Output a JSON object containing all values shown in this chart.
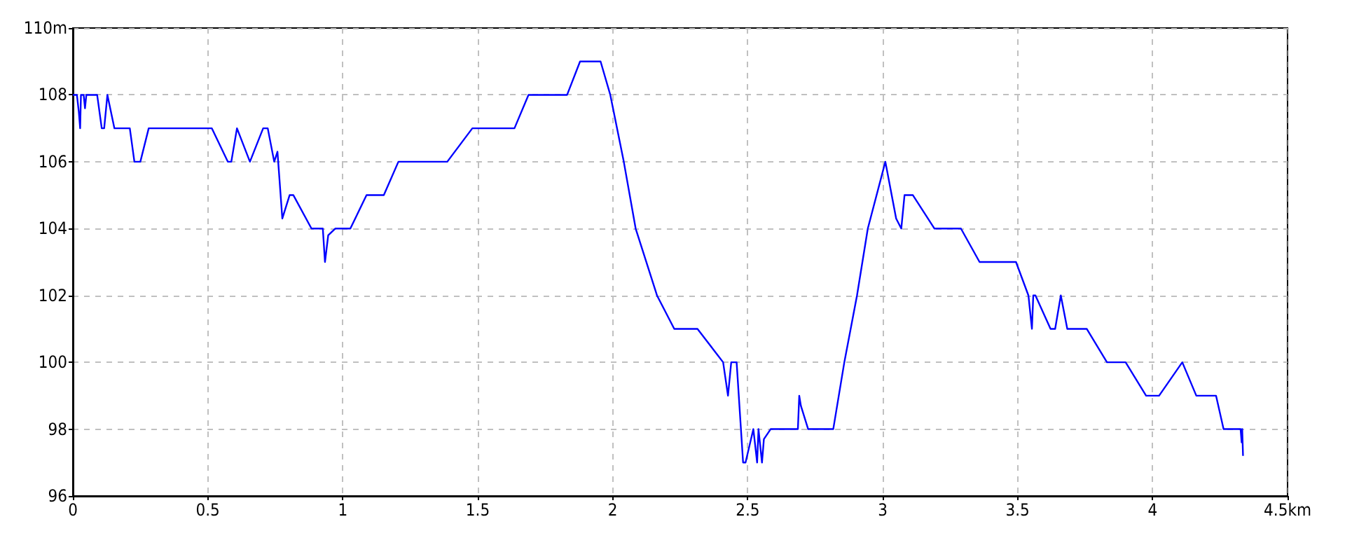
{
  "chart_data": {
    "type": "line",
    "marker": "none",
    "line_style": "solid",
    "grid": true,
    "xlim": [
      0,
      4.5
    ],
    "xticks": [
      0,
      0.5,
      1,
      1.5,
      2,
      2.5,
      3,
      3.5,
      4,
      {
        "value": 4.5,
        "label": "4.5km"
      }
    ],
    "ylim": [
      96,
      110
    ],
    "yticks": [
      96,
      98,
      100,
      102,
      104,
      106,
      108,
      {
        "value": 110,
        "label": "110m"
      }
    ],
    "series": [
      {
        "color": "#0000ff",
        "x": [
          0,
          0.015,
          0.022,
          0.027,
          0.03,
          0.04,
          0.045,
          0.05,
          0.09,
          0.107,
          0.116,
          0.128,
          0.154,
          0.211,
          0.228,
          0.25,
          0.281,
          0.515,
          0.574,
          0.587,
          0.608,
          0.656,
          0.705,
          0.722,
          0.746,
          0.758,
          0.776,
          0.803,
          0.817,
          0.884,
          0.926,
          0.934,
          0.946,
          0.972,
          1.028,
          1.088,
          1.152,
          1.206,
          1.387,
          1.48,
          1.636,
          1.688,
          1.831,
          1.879,
          1.955,
          1.991,
          2.041,
          2.085,
          2.164,
          2.228,
          2.314,
          2.409,
          2.427,
          2.439,
          2.459,
          2.483,
          2.492,
          2.521,
          2.535,
          2.54,
          2.553,
          2.56,
          2.585,
          2.686,
          2.691,
          2.697,
          2.724,
          2.817,
          2.858,
          2.905,
          2.945,
          3.01,
          3.05,
          3.069,
          3.081,
          3.112,
          3.192,
          3.29,
          3.359,
          3.494,
          3.54,
          3.553,
          3.558,
          3.566,
          3.622,
          3.639,
          3.66,
          3.684,
          3.756,
          3.831,
          3.9,
          3.976,
          4.024,
          4.11,
          4.162,
          4.235,
          4.263,
          4.326,
          4.33,
          4.332,
          4.335
        ],
        "values": [
          108,
          108,
          107.5,
          107,
          108,
          108,
          107.6,
          108,
          108,
          107,
          107,
          108,
          107,
          107,
          106,
          106,
          107,
          107,
          106,
          106,
          107,
          106,
          107,
          107,
          106,
          106.3,
          104.3,
          105,
          105,
          104,
          104,
          103,
          103.8,
          104,
          104,
          105,
          105,
          106,
          106,
          107,
          107,
          108,
          108,
          109,
          109,
          108,
          106,
          104,
          102,
          101,
          101,
          100,
          99,
          100,
          100,
          97,
          97,
          98,
          97,
          98,
          97,
          97.7,
          98,
          98,
          99,
          98.7,
          98,
          98,
          100,
          102,
          104,
          106,
          104.3,
          104,
          105,
          105,
          104,
          104,
          103,
          103,
          102,
          101,
          102,
          102,
          101,
          101,
          102,
          101,
          101,
          100,
          100,
          99,
          99,
          100,
          99,
          99,
          98,
          98,
          97.6,
          98,
          97.2
        ]
      }
    ]
  }
}
